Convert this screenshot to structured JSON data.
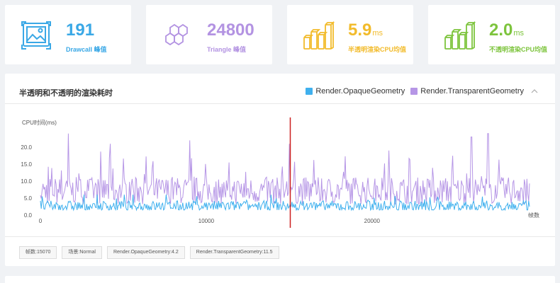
{
  "stats": [
    {
      "value": "191",
      "unit": "",
      "label": "Drawcall 峰值",
      "color": "#3aa8e6",
      "icon": "image-frame-icon"
    },
    {
      "value": "24800",
      "unit": "",
      "label": "Triangle 峰值",
      "color": "#b393e2",
      "icon": "hexagon-cluster-icon"
    },
    {
      "value": "5.9",
      "unit": "ms",
      "label": "半透明渲染CPU均值",
      "color": "#f2bb2b",
      "icon": "bar-cylinders-icon"
    },
    {
      "value": "2.0",
      "unit": "ms",
      "label": "不透明渲染CPU均值",
      "color": "#7dc43d",
      "icon": "bar-cylinders-icon"
    }
  ],
  "chart": {
    "title": "半透明和不透明的渲染耗时",
    "legend": [
      {
        "name": "Render.OpaqueGeometry",
        "color": "#3fb0ee"
      },
      {
        "name": "Render.TransparentGeometry",
        "color": "#b696e6"
      }
    ],
    "tags": [
      "帧数:15070",
      "场景:Normal",
      "Render.OpaqueGeometry:4.2",
      "Render.TransparentGeometry:11.5"
    ]
  },
  "chart_data": {
    "type": "line",
    "ylabel": "CPU时间(ms)",
    "xlabel": "帧数",
    "xlim": [
      0,
      29500
    ],
    "ylim": [
      0,
      22.5
    ],
    "x_ticks": [
      0,
      10000,
      20000
    ],
    "y_ticks": [
      0.0,
      5.0,
      10.0,
      15.0,
      20.0
    ],
    "y_tick_labels": [
      "0.0",
      "5.0",
      "10.0",
      "15.0",
      "20.0"
    ],
    "marker_x": 15070,
    "marker_color": "#cc1f1f",
    "series": [
      {
        "name": "Render.OpaqueGeometry",
        "baseline": 2.0,
        "range": [
          1.5,
          6.0
        ],
        "color": "#3fb0ee"
      },
      {
        "name": "Render.TransparentGeometry",
        "baseline": 6.0,
        "range": [
          3.0,
          24.0
        ],
        "peaks": [
          [
            1700,
            24
          ],
          [
            4200,
            21
          ],
          [
            9000,
            22
          ],
          [
            15000,
            21
          ],
          [
            21000,
            19
          ],
          [
            26000,
            23
          ],
          [
            27000,
            24
          ]
        ],
        "color": "#b696e6"
      }
    ]
  }
}
